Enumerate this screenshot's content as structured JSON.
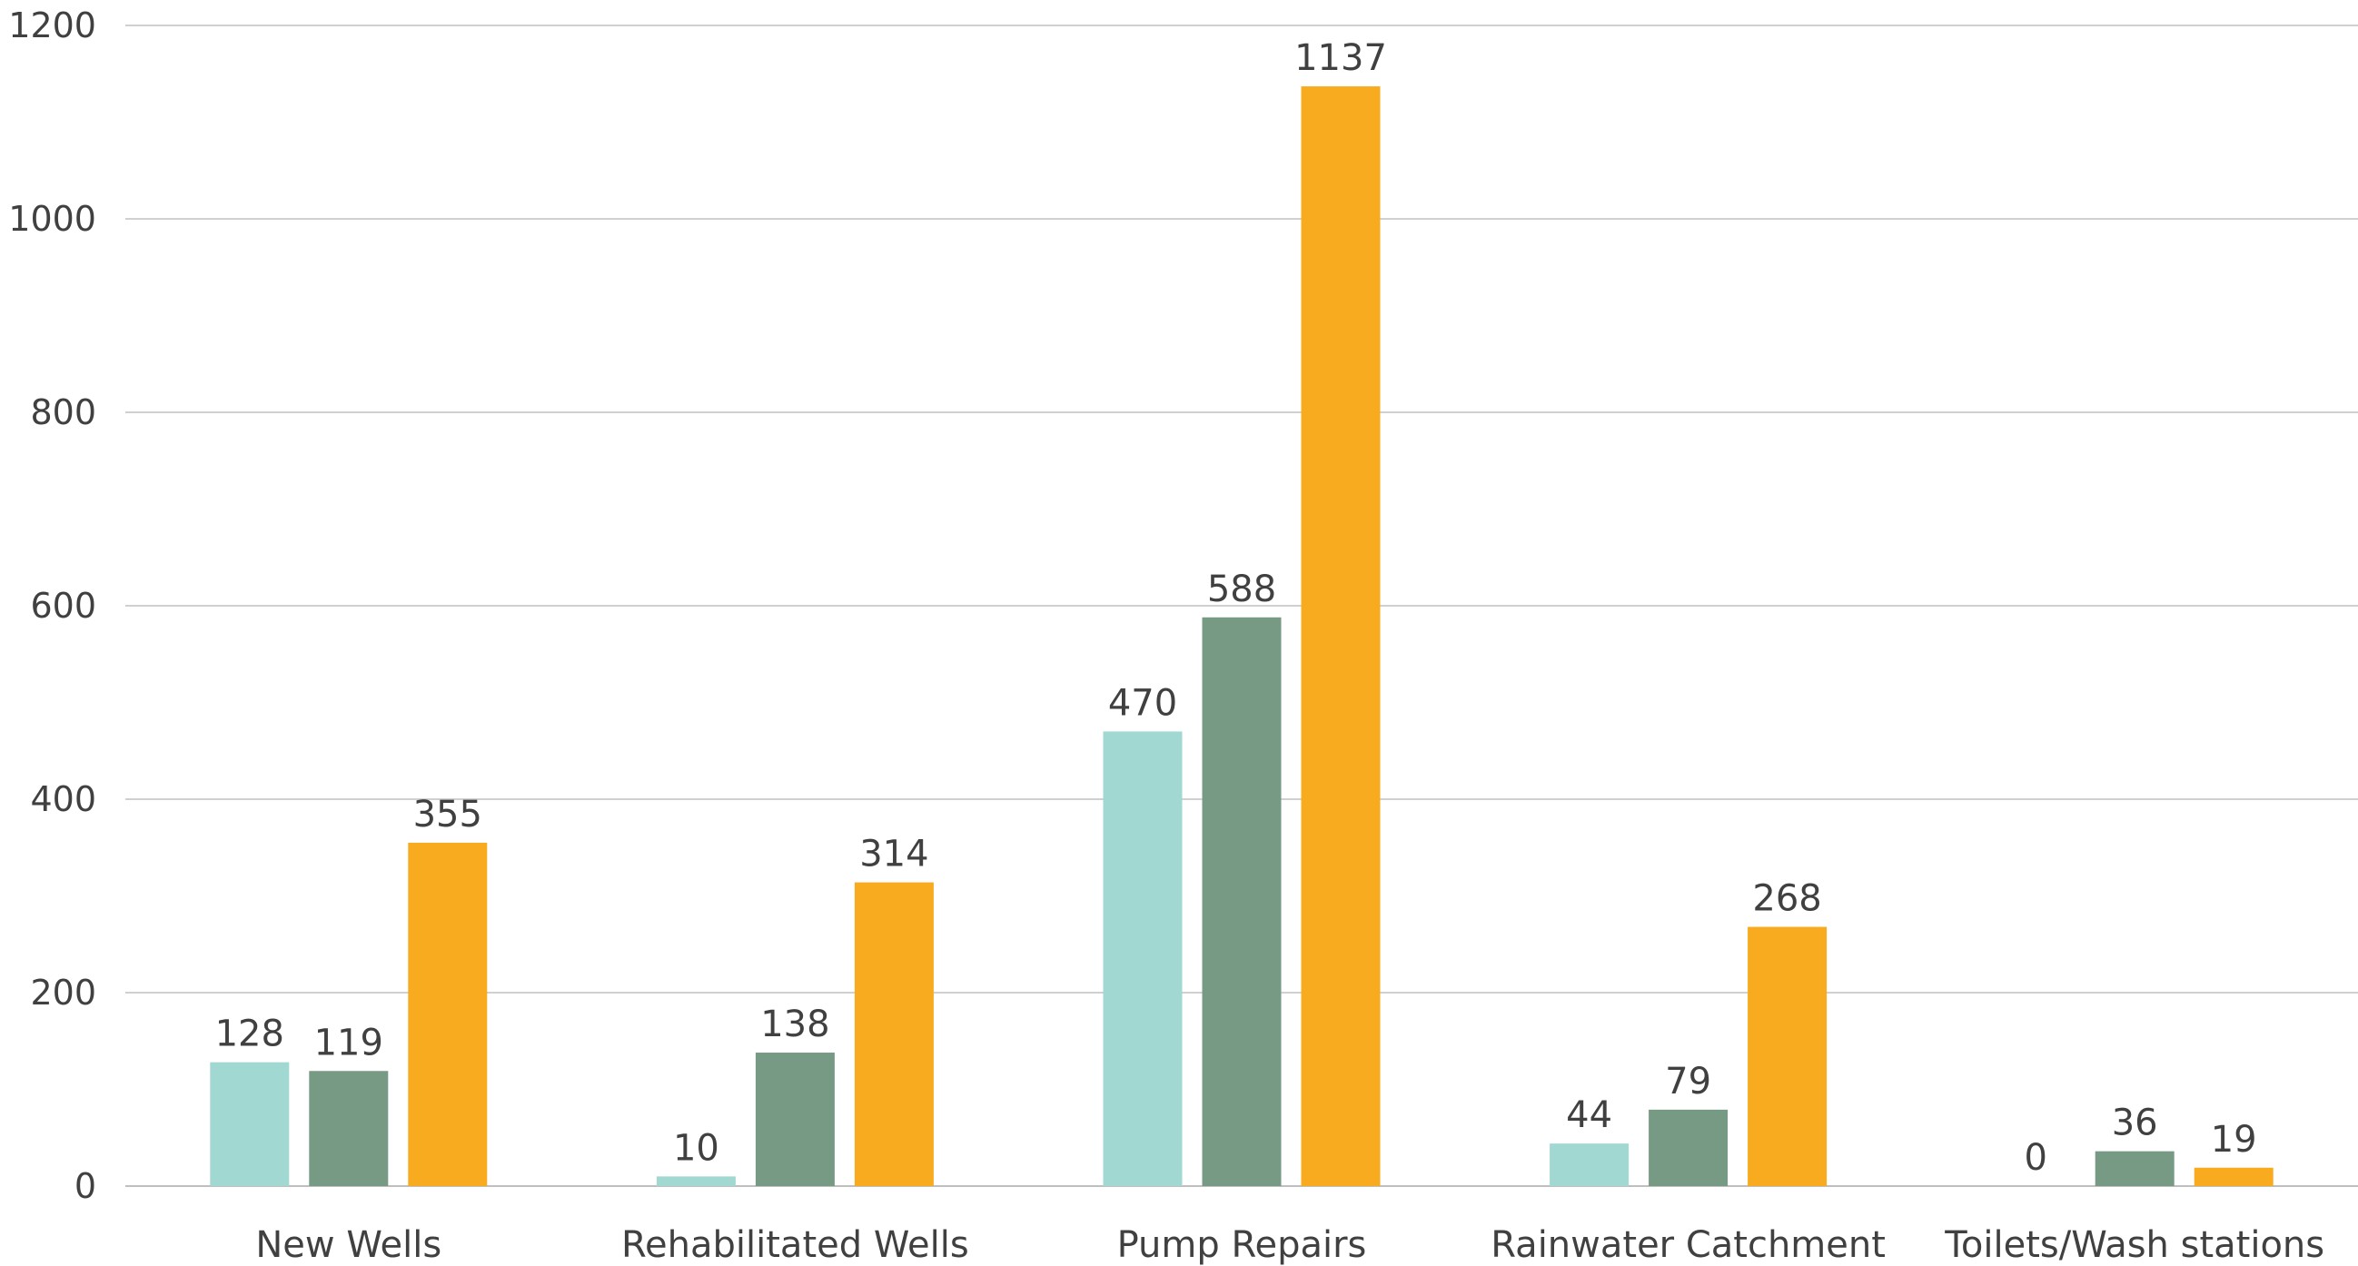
{
  "chart_data": {
    "type": "bar",
    "title": "",
    "xlabel": "",
    "ylabel": "",
    "ylim": [
      0,
      1200
    ],
    "yticks": [
      0,
      200,
      400,
      600,
      800,
      1000,
      1200
    ],
    "grid": true,
    "legend": "none",
    "categories": [
      "New Wells",
      "Rehabilitated Wells",
      "Pump Repairs",
      "Rainwater Catchment",
      "Toilets/Wash stations"
    ],
    "series": [
      {
        "color": "#a1d8d2",
        "values": [
          128,
          10,
          470,
          44,
          0
        ]
      },
      {
        "color": "#779a85",
        "values": [
          119,
          138,
          588,
          79,
          36
        ]
      },
      {
        "color": "#f8ab1e",
        "values": [
          355,
          314,
          1137,
          268,
          19
        ]
      }
    ]
  }
}
